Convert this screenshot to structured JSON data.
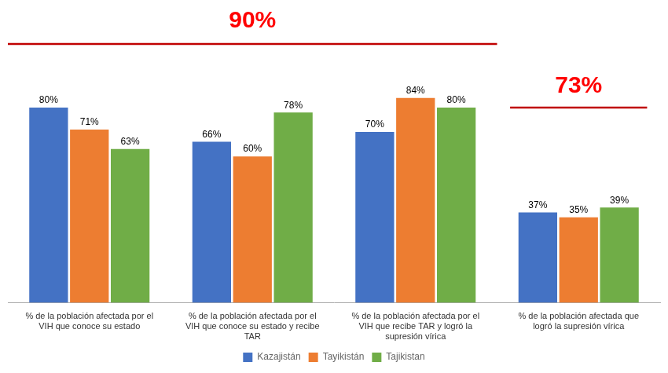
{
  "chart_data": {
    "type": "bar",
    "categories": [
      "% de la población afectada por el\nVIH que conoce su estado",
      "% de la población afectada por el\nVIH que conoce su estado y recibe\nTAR",
      "% de la población afectada por el\nVIH que recibe TAR y logró la\nsupresión vírica",
      "% de la población afectada que\nlogró la supresión vírica"
    ],
    "series": [
      {
        "name": "Kazajistán",
        "color": "#4472C4",
        "values": [
          80,
          66,
          70,
          37
        ],
        "value_labels": [
          "80%",
          "66%",
          "70%",
          "37%"
        ]
      },
      {
        "name": "Tayikistán",
        "color": "#ED7D31",
        "values": [
          71,
          60,
          84,
          35
        ],
        "value_labels": [
          "71%",
          "60%",
          "84%",
          "35%"
        ]
      },
      {
        "name": "Tajikistan",
        "color": "#70AD47",
        "values": [
          63,
          78,
          80,
          39
        ],
        "value_labels": [
          "63%",
          "78%",
          "80%",
          "39%"
        ]
      }
    ],
    "annotations": [
      {
        "text": "90%",
        "color": "#FF0000",
        "line_color": "#C00000"
      },
      {
        "text": "73%",
        "color": "#FF0000",
        "line_color": "#C00000"
      }
    ],
    "ylim": [
      0,
      100
    ],
    "yticks": [],
    "tick_labels": "x",
    "data_labels": true,
    "grid": false,
    "legend": "bottom"
  }
}
